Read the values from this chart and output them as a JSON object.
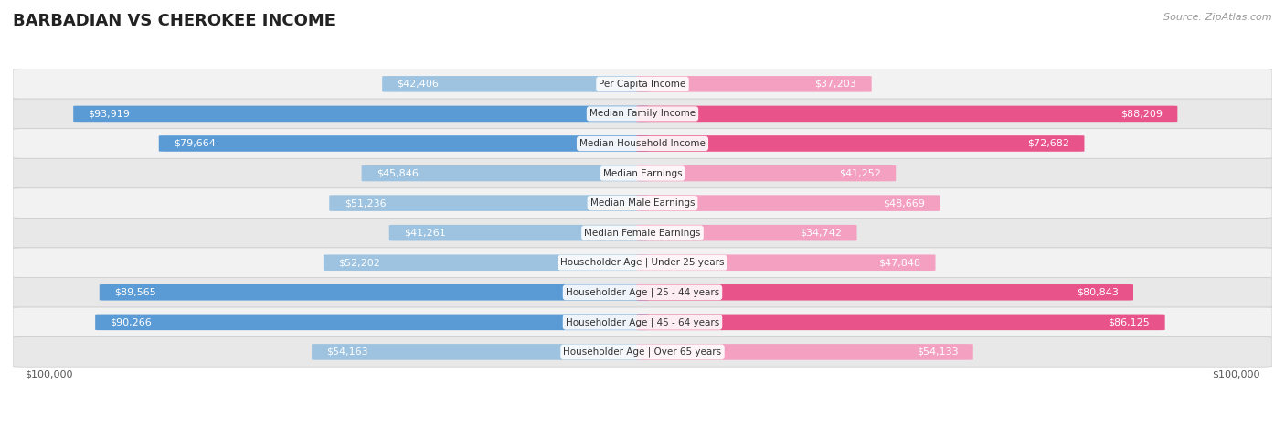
{
  "title": "BARBADIAN VS CHEROKEE INCOME",
  "source": "Source: ZipAtlas.com",
  "categories": [
    "Per Capita Income",
    "Median Family Income",
    "Median Household Income",
    "Median Earnings",
    "Median Male Earnings",
    "Median Female Earnings",
    "Householder Age | Under 25 years",
    "Householder Age | 25 - 44 years",
    "Householder Age | 45 - 64 years",
    "Householder Age | Over 65 years"
  ],
  "barbadian": [
    42406,
    93919,
    79664,
    45846,
    51236,
    41261,
    52202,
    89565,
    90266,
    54163
  ],
  "cherokee": [
    37203,
    88209,
    72682,
    41252,
    48669,
    34742,
    47848,
    80843,
    86125,
    54133
  ],
  "barbadian_labels": [
    "$42,406",
    "$93,919",
    "$79,664",
    "$45,846",
    "$51,236",
    "$41,261",
    "$52,202",
    "$89,565",
    "$90,266",
    "$54,163"
  ],
  "cherokee_labels": [
    "$37,203",
    "$88,209",
    "$72,682",
    "$41,252",
    "$48,669",
    "$34,742",
    "$47,848",
    "$80,843",
    "$86,125",
    "$54,133"
  ],
  "barbadian_color_light": "#9dc3e0",
  "barbadian_color_dark": "#5b9bd5",
  "cherokee_color_light": "#f4a0c0",
  "cherokee_color_dark": "#e8538a",
  "max_value": 100000,
  "background_color": "#ffffff",
  "row_bg": "#f2f2f2",
  "row_bg2": "#e8e8e8",
  "title_fontsize": 13,
  "source_fontsize": 8,
  "bar_label_fontsize": 8,
  "cat_label_fontsize": 7.5,
  "axis_label_fontsize": 8,
  "inside_threshold": 0.3
}
